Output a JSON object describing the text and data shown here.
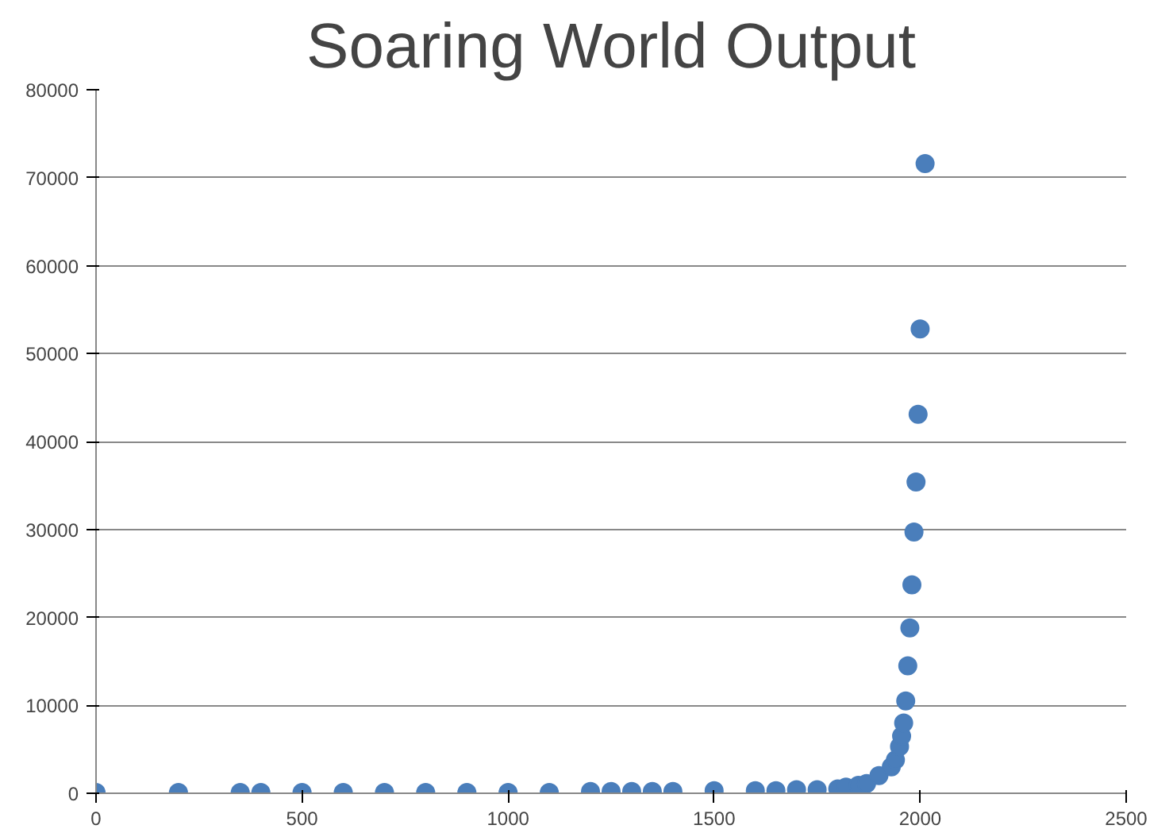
{
  "chart_data": {
    "type": "scatter",
    "title": "Soaring World Output",
    "x": [
      0,
      200,
      350,
      400,
      500,
      600,
      700,
      800,
      900,
      1000,
      1100,
      1200,
      1250,
      1300,
      1350,
      1400,
      1500,
      1600,
      1650,
      1700,
      1750,
      1800,
      1820,
      1850,
      1870,
      1900,
      1930,
      1940,
      1950,
      1955,
      1960,
      1965,
      1970,
      1975,
      1980,
      1985,
      1990,
      1995,
      2000,
      2012
    ],
    "series": [
      {
        "color": "#4a7ebb",
        "values": [
          100,
          100,
          100,
          100,
          100,
          100,
          100,
          100,
          100,
          100,
          100,
          200,
          200,
          200,
          200,
          200,
          300,
          300,
          300,
          400,
          400,
          500,
          700,
          900,
          1100,
          2000,
          3000,
          3800,
          5300,
          6500,
          8000,
          10500,
          14500,
          18800,
          23700,
          29700,
          35400,
          43100,
          52800,
          71600
        ]
      }
    ],
    "xlim": [
      0,
      2500
    ],
    "xticks": [
      0,
      500,
      1000,
      1500,
      2000,
      2500
    ],
    "ylim": [
      0,
      80000
    ],
    "yticks": [
      0,
      10000,
      20000,
      30000,
      40000,
      50000,
      60000,
      70000,
      80000
    ],
    "grid": "y",
    "marker": "circle"
  }
}
